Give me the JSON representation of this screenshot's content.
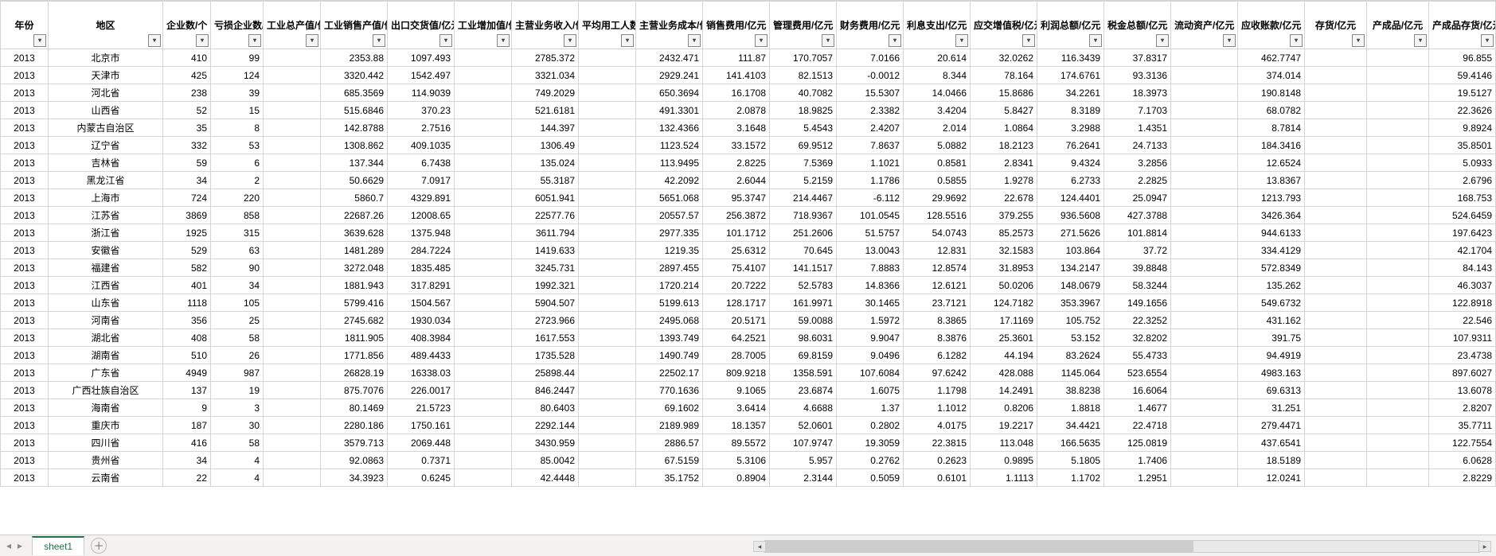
{
  "sheet": {
    "active_tab": "sheet1"
  },
  "colors": {
    "grid_border": "#d4d4d4",
    "tabbar_bg": "#f3f2f1",
    "accent": "#217346",
    "scroll_track": "#e9e9e9",
    "scroll_thumb": "#cdcdcd"
  },
  "columns": [
    "年份",
    "地区",
    "企业数/个",
    "亏损企业数/个",
    "工业总产值/亿元",
    "工业销售产值/亿元",
    "出口交货值/亿元",
    "工业增加值/亿元",
    "主营业务收入/亿元",
    "平均用工人数/万人",
    "主营业务成本/亿元",
    "销售费用/亿元",
    "管理费用/亿元",
    "财务费用/亿元",
    "利息支出/亿元",
    "应交增值税/亿元",
    "利润总额/亿元",
    "税金总额/亿元",
    "流动资产/亿元",
    "应收账款/亿元",
    "存货/亿元",
    "产成品/亿元",
    "产成品存货/亿元"
  ],
  "rows": [
    [
      "2013",
      "北京市",
      "410",
      "99",
      "",
      "2353.88",
      "1097.493",
      "",
      "2785.372",
      "",
      "2432.471",
      "111.87",
      "170.7057",
      "7.0166",
      "20.614",
      "32.0262",
      "116.3439",
      "37.8317",
      "",
      "462.7747",
      "",
      "",
      "96.855"
    ],
    [
      "2013",
      "天津市",
      "425",
      "124",
      "",
      "3320.442",
      "1542.497",
      "",
      "3321.034",
      "",
      "2929.241",
      "141.4103",
      "82.1513",
      "-0.0012",
      "8.344",
      "78.164",
      "174.6761",
      "93.3136",
      "",
      "374.014",
      "",
      "",
      "59.4146"
    ],
    [
      "2013",
      "河北省",
      "238",
      "39",
      "",
      "685.3569",
      "114.9039",
      "",
      "749.2029",
      "",
      "650.3694",
      "16.1708",
      "40.7082",
      "15.5307",
      "14.0466",
      "15.8686",
      "34.2261",
      "18.3973",
      "",
      "190.8148",
      "",
      "",
      "19.5127"
    ],
    [
      "2013",
      "山西省",
      "52",
      "15",
      "",
      "515.6846",
      "370.23",
      "",
      "521.6181",
      "",
      "491.3301",
      "2.0878",
      "18.9825",
      "2.3382",
      "3.4204",
      "5.8427",
      "8.3189",
      "7.1703",
      "",
      "68.0782",
      "",
      "",
      "22.3626"
    ],
    [
      "2013",
      "内蒙古自治区",
      "35",
      "8",
      "",
      "142.8788",
      "2.7516",
      "",
      "144.397",
      "",
      "132.4366",
      "3.1648",
      "5.4543",
      "2.4207",
      "2.014",
      "1.0864",
      "3.2988",
      "1.4351",
      "",
      "8.7814",
      "",
      "",
      "9.8924"
    ],
    [
      "2013",
      "辽宁省",
      "332",
      "53",
      "",
      "1308.862",
      "409.1035",
      "",
      "1306.49",
      "",
      "1123.524",
      "33.1572",
      "69.9512",
      "7.8637",
      "5.0882",
      "18.2123",
      "76.2641",
      "24.7133",
      "",
      "184.3416",
      "",
      "",
      "35.8501"
    ],
    [
      "2013",
      "吉林省",
      "59",
      "6",
      "",
      "137.344",
      "6.7438",
      "",
      "135.024",
      "",
      "113.9495",
      "2.8225",
      "7.5369",
      "1.1021",
      "0.8581",
      "2.8341",
      "9.4324",
      "3.2856",
      "",
      "12.6524",
      "",
      "",
      "5.0933"
    ],
    [
      "2013",
      "黑龙江省",
      "34",
      "2",
      "",
      "50.6629",
      "7.0917",
      "",
      "55.3187",
      "",
      "42.2092",
      "2.6044",
      "5.2159",
      "1.1786",
      "0.5855",
      "1.9278",
      "6.2733",
      "2.2825",
      "",
      "13.8367",
      "",
      "",
      "2.6796"
    ],
    [
      "2013",
      "上海市",
      "724",
      "220",
      "",
      "5860.7",
      "4329.891",
      "",
      "6051.941",
      "",
      "5651.068",
      "95.3747",
      "214.4467",
      "-6.112",
      "29.9692",
      "22.678",
      "124.4401",
      "25.0947",
      "",
      "1213.793",
      "",
      "",
      "168.753"
    ],
    [
      "2013",
      "江苏省",
      "3869",
      "858",
      "",
      "22687.26",
      "12008.65",
      "",
      "22577.76",
      "",
      "20557.57",
      "256.3872",
      "718.9367",
      "101.0545",
      "128.5516",
      "379.255",
      "936.5608",
      "427.3788",
      "",
      "3426.364",
      "",
      "",
      "524.6459"
    ],
    [
      "2013",
      "浙江省",
      "1925",
      "315",
      "",
      "3639.628",
      "1375.948",
      "",
      "3611.794",
      "",
      "2977.335",
      "101.1712",
      "251.2606",
      "51.5757",
      "54.0743",
      "85.2573",
      "271.5626",
      "101.8814",
      "",
      "944.6133",
      "",
      "",
      "197.6423"
    ],
    [
      "2013",
      "安徽省",
      "529",
      "63",
      "",
      "1481.289",
      "284.7224",
      "",
      "1419.633",
      "",
      "1219.35",
      "25.6312",
      "70.645",
      "13.0043",
      "12.831",
      "32.1583",
      "103.864",
      "37.72",
      "",
      "334.4129",
      "",
      "",
      "42.1704"
    ],
    [
      "2013",
      "福建省",
      "582",
      "90",
      "",
      "3272.048",
      "1835.485",
      "",
      "3245.731",
      "",
      "2897.455",
      "75.4107",
      "141.1517",
      "7.8883",
      "12.8574",
      "31.8953",
      "134.2147",
      "39.8848",
      "",
      "572.8349",
      "",
      "",
      "84.143"
    ],
    [
      "2013",
      "江西省",
      "401",
      "34",
      "",
      "1881.943",
      "317.8291",
      "",
      "1992.321",
      "",
      "1720.214",
      "20.7222",
      "52.5783",
      "14.8366",
      "12.6121",
      "50.0206",
      "148.0679",
      "58.3244",
      "",
      "135.262",
      "",
      "",
      "46.3037"
    ],
    [
      "2013",
      "山东省",
      "1118",
      "105",
      "",
      "5799.416",
      "1504.567",
      "",
      "5904.507",
      "",
      "5199.613",
      "128.1717",
      "161.9971",
      "30.1465",
      "23.7121",
      "124.7182",
      "353.3967",
      "149.1656",
      "",
      "549.6732",
      "",
      "",
      "122.8918"
    ],
    [
      "2013",
      "河南省",
      "356",
      "25",
      "",
      "2745.682",
      "1930.034",
      "",
      "2723.966",
      "",
      "2495.068",
      "20.5171",
      "59.0088",
      "1.5972",
      "8.3865",
      "17.1169",
      "105.752",
      "22.3252",
      "",
      "431.162",
      "",
      "",
      "22.546"
    ],
    [
      "2013",
      "湖北省",
      "408",
      "58",
      "",
      "1811.905",
      "408.3984",
      "",
      "1617.553",
      "",
      "1393.749",
      "64.2521",
      "98.6031",
      "9.9047",
      "8.3876",
      "25.3601",
      "53.152",
      "32.8202",
      "",
      "391.75",
      "",
      "",
      "107.9311"
    ],
    [
      "2013",
      "湖南省",
      "510",
      "26",
      "",
      "1771.856",
      "489.4433",
      "",
      "1735.528",
      "",
      "1490.749",
      "28.7005",
      "69.8159",
      "9.0496",
      "6.1282",
      "44.194",
      "83.2624",
      "55.4733",
      "",
      "94.4919",
      "",
      "",
      "23.4738"
    ],
    [
      "2013",
      "广东省",
      "4949",
      "987",
      "",
      "26828.19",
      "16338.03",
      "",
      "25898.44",
      "",
      "22502.17",
      "809.9218",
      "1358.591",
      "107.6084",
      "97.6242",
      "428.088",
      "1145.064",
      "523.6554",
      "",
      "4983.163",
      "",
      "",
      "897.6027"
    ],
    [
      "2013",
      "广西壮族自治区",
      "137",
      "19",
      "",
      "875.7076",
      "226.0017",
      "",
      "846.2447",
      "",
      "770.1636",
      "9.1065",
      "23.6874",
      "1.6075",
      "1.1798",
      "14.2491",
      "38.8238",
      "16.6064",
      "",
      "69.6313",
      "",
      "",
      "13.6078"
    ],
    [
      "2013",
      "海南省",
      "9",
      "3",
      "",
      "80.1469",
      "21.5723",
      "",
      "80.6403",
      "",
      "69.1602",
      "3.6414",
      "4.6688",
      "1.37",
      "1.1012",
      "0.8206",
      "1.8818",
      "1.4677",
      "",
      "31.251",
      "",
      "",
      "2.8207"
    ],
    [
      "2013",
      "重庆市",
      "187",
      "30",
      "",
      "2280.186",
      "1750.161",
      "",
      "2292.144",
      "",
      "2189.989",
      "18.1357",
      "52.0601",
      "0.2802",
      "4.0175",
      "19.2217",
      "34.4421",
      "22.4718",
      "",
      "279.4471",
      "",
      "",
      "35.7711"
    ],
    [
      "2013",
      "四川省",
      "416",
      "58",
      "",
      "3579.713",
      "2069.448",
      "",
      "3430.959",
      "",
      "2886.57",
      "89.5572",
      "107.9747",
      "19.3059",
      "22.3815",
      "113.048",
      "166.5635",
      "125.0819",
      "",
      "437.6541",
      "",
      "",
      "122.7554"
    ],
    [
      "2013",
      "贵州省",
      "34",
      "4",
      "",
      "92.0863",
      "0.7371",
      "",
      "85.0042",
      "",
      "67.5159",
      "5.3106",
      "5.957",
      "0.2762",
      "0.2623",
      "0.9895",
      "5.1805",
      "1.7406",
      "",
      "18.5189",
      "",
      "",
      "6.0628"
    ],
    [
      "2013",
      "云南省",
      "22",
      "4",
      "",
      "34.3923",
      "0.6245",
      "",
      "42.4448",
      "",
      "35.1752",
      "0.8904",
      "2.3144",
      "0.5059",
      "0.6101",
      "1.1113",
      "1.1702",
      "1.2951",
      "",
      "12.0241",
      "",
      "",
      "2.8229"
    ]
  ]
}
